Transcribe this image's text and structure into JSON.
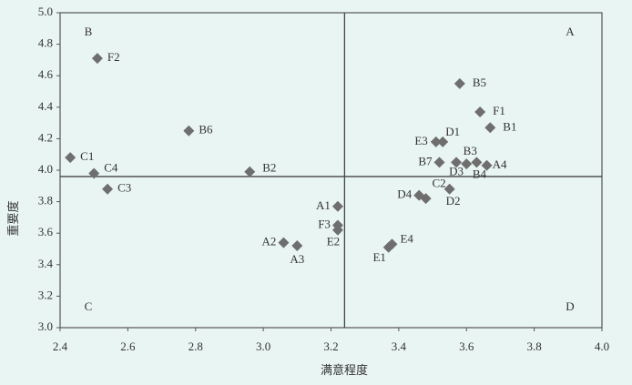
{
  "chart_data": {
    "type": "scatter",
    "x_label": "满意程度",
    "y_label": "重要度",
    "color": "#6e6e6e",
    "quadrant_labels": [
      "A",
      "B",
      "C",
      "D"
    ],
    "reference_lines": {
      "x": 3.24,
      "y": 3.96
    },
    "labels": [
      "C1",
      "C4",
      "C3",
      "F2",
      "B6",
      "B2",
      "A1",
      "F3",
      "E2",
      "A2",
      "A3",
      "E1",
      "E4",
      "D4",
      "D2",
      "C2",
      "B7",
      "D3",
      "B3",
      "B4",
      "A4",
      "E3",
      "D1",
      "B5",
      "F1",
      "B1"
    ],
    "x": [
      2.43,
      2.5,
      2.54,
      2.51,
      2.78,
      2.96,
      3.22,
      3.22,
      3.22,
      3.06,
      3.1,
      3.37,
      3.38,
      3.46,
      3.48,
      3.55,
      3.52,
      3.57,
      3.6,
      3.63,
      3.66,
      3.51,
      3.53,
      3.58,
      3.64,
      3.67
    ],
    "values": [
      4.08,
      3.98,
      3.88,
      4.71,
      4.25,
      3.99,
      3.77,
      3.65,
      3.62,
      3.54,
      3.52,
      3.51,
      3.53,
      3.84,
      3.82,
      3.88,
      4.05,
      4.05,
      4.04,
      4.05,
      4.03,
      4.18,
      4.18,
      4.55,
      4.37,
      4.27
    ],
    "xlim": [
      2.4,
      4.0
    ],
    "xticks": [
      2.4,
      2.6,
      2.8,
      {
        "value": 3.0,
        "label": "3.0"
      },
      3.2,
      3.4,
      3.6,
      3.8,
      {
        "value": 4.0,
        "label": "4.0"
      }
    ],
    "ylim": [
      3.0,
      5.0
    ],
    "yticks": [
      {
        "value": 3.0,
        "label": "3.0"
      },
      3.2,
      3.4,
      3.6,
      3.8,
      {
        "value": 4.0,
        "label": "4.0"
      },
      4.2,
      4.4,
      4.6,
      4.8,
      {
        "value": 5.0,
        "label": "5.0"
      }
    ]
  }
}
